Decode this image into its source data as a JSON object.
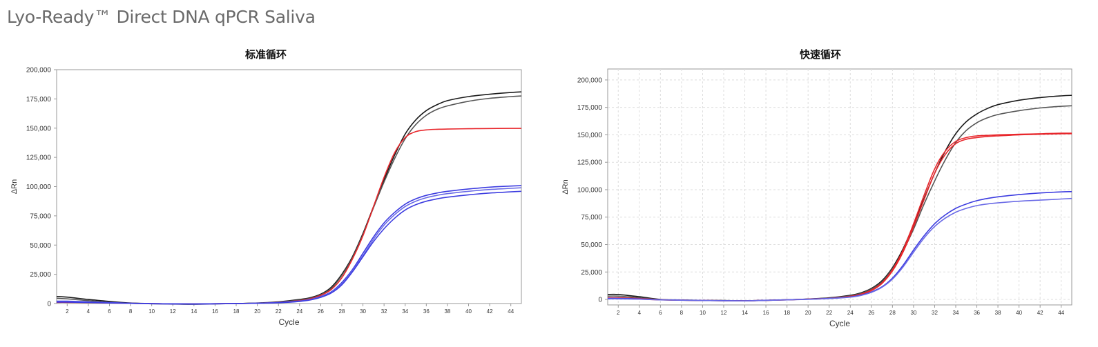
{
  "page": {
    "title": "Lyo-Ready™ Direct DNA qPCR Saliva"
  },
  "colors": {
    "black": "#1a1a1a",
    "gray": "#555555",
    "red": "#e8262b",
    "blue": "#3c3ce0",
    "blue_light": "#6a6ae6",
    "grid": "#dddddd",
    "axis": "#999999"
  },
  "chart_data": [
    {
      "type": "line",
      "title": "标准循环",
      "xlabel": "Cycle",
      "ylabel": "ΔRn",
      "xlim": [
        1,
        45
      ],
      "ylim": [
        0,
        200000
      ],
      "grid": false,
      "x_ticks": [
        2,
        4,
        6,
        8,
        10,
        12,
        14,
        16,
        18,
        20,
        22,
        24,
        26,
        28,
        30,
        32,
        34,
        36,
        38,
        40,
        42,
        44
      ],
      "y_ticks": [
        0,
        25000,
        50000,
        75000,
        100000,
        125000,
        150000,
        175000,
        200000
      ],
      "y_tick_labels": [
        "0",
        "25,000",
        "50,000",
        "75,000",
        "100,000",
        "125,000",
        "150,000",
        "175,000",
        "200,000"
      ],
      "x": [
        1,
        2,
        4,
        6,
        8,
        10,
        12,
        14,
        16,
        18,
        20,
        22,
        24,
        25,
        26,
        27,
        28,
        29,
        30,
        31,
        32,
        33,
        34,
        35,
        36,
        37,
        38,
        40,
        42,
        44,
        45
      ],
      "series": [
        {
          "color": "black",
          "values": [
            6000,
            5500,
            3500,
            1800,
            500,
            0,
            -300,
            -500,
            -200,
            0,
            500,
            1500,
            3500,
            5000,
            8000,
            14000,
            25000,
            40000,
            60000,
            83000,
            106000,
            127000,
            145000,
            157000,
            165000,
            170000,
            173500,
            177000,
            179000,
            180500,
            181000
          ]
        },
        {
          "color": "gray",
          "values": [
            4500,
            4000,
            2500,
            1000,
            200,
            -200,
            -500,
            -600,
            -300,
            0,
            400,
            1200,
            3000,
            4500,
            7500,
            13000,
            24000,
            39000,
            59000,
            82000,
            104000,
            124000,
            141000,
            153000,
            161000,
            166000,
            169000,
            173000,
            175500,
            177000,
            177500
          ]
        },
        {
          "color": "red",
          "values": [
            1000,
            1000,
            800,
            500,
            200,
            0,
            -200,
            -300,
            -100,
            0,
            300,
            1000,
            2500,
            4000,
            7000,
            12000,
            22000,
            38000,
            58000,
            83000,
            108000,
            129000,
            142000,
            147000,
            148500,
            149000,
            149200,
            149500,
            149700,
            149800,
            149800
          ]
        },
        {
          "color": "blue",
          "values": [
            2000,
            2000,
            1500,
            800,
            300,
            0,
            -200,
            -300,
            -100,
            0,
            300,
            900,
            2200,
            3500,
            6000,
            10000,
            18000,
            29000,
            43000,
            57000,
            69000,
            78000,
            85000,
            89500,
            92500,
            94500,
            96000,
            98000,
            99500,
            100500,
            100800
          ]
        },
        {
          "color": "blue_light",
          "values": [
            1500,
            1500,
            1100,
            600,
            200,
            -100,
            -300,
            -400,
            -200,
            0,
            300,
            800,
            2000,
            3300,
            5700,
            9500,
            17000,
            28000,
            41000,
            55000,
            67000,
            76000,
            83000,
            87500,
            90500,
            92500,
            94000,
            96000,
            97500,
            98500,
            99000
          ]
        },
        {
          "color": "blue",
          "values": [
            1200,
            1200,
            900,
            500,
            150,
            -150,
            -350,
            -450,
            -250,
            -50,
            250,
            700,
            1800,
            3000,
            5300,
            9000,
            16000,
            27000,
            40000,
            53000,
            64000,
            73000,
            80000,
            84500,
            87500,
            89500,
            91000,
            93000,
            94500,
            95500,
            96000
          ]
        }
      ]
    },
    {
      "type": "line",
      "title": "快速循环",
      "xlabel": "Cycle",
      "ylabel": "ΔRn",
      "xlim": [
        1,
        45
      ],
      "ylim": [
        -5000,
        210000
      ],
      "grid": true,
      "x_ticks": [
        2,
        4,
        6,
        8,
        10,
        12,
        14,
        16,
        18,
        20,
        22,
        24,
        26,
        28,
        30,
        32,
        34,
        36,
        38,
        40,
        42,
        44
      ],
      "y_ticks": [
        0,
        25000,
        50000,
        75000,
        100000,
        125000,
        150000,
        175000,
        200000
      ],
      "y_tick_labels": [
        "0",
        "25,000",
        "50,000",
        "75,000",
        "100,000",
        "125,000",
        "150,000",
        "175,000",
        "200,000"
      ],
      "x": [
        1,
        2,
        4,
        6,
        8,
        10,
        12,
        14,
        16,
        18,
        20,
        22,
        24,
        25,
        26,
        27,
        28,
        29,
        30,
        31,
        32,
        33,
        34,
        35,
        36,
        37,
        38,
        40,
        42,
        44,
        45
      ],
      "series": [
        {
          "color": "black",
          "values": [
            4500,
            4500,
            2500,
            0,
            -500,
            -800,
            -1000,
            -1200,
            -800,
            -300,
            400,
            1500,
            3800,
            6000,
            10000,
            17000,
            29000,
            46000,
            68000,
            92000,
            115000,
            135000,
            151000,
            162000,
            169000,
            174000,
            177500,
            181500,
            184000,
            185500,
            186000
          ]
        },
        {
          "color": "gray",
          "values": [
            3000,
            3000,
            1500,
            -300,
            -700,
            -1000,
            -1200,
            -1300,
            -900,
            -400,
            300,
            1200,
            3300,
            5500,
            9500,
            16000,
            28000,
            44000,
            64000,
            87000,
            108000,
            127000,
            143000,
            154000,
            161000,
            165500,
            168500,
            172000,
            174500,
            176000,
            176500
          ]
        },
        {
          "color": "red",
          "values": [
            1500,
            1500,
            800,
            -200,
            -600,
            -900,
            -1100,
            -1200,
            -800,
            -300,
            300,
            1000,
            2800,
            4800,
            8500,
            15000,
            27000,
            45000,
            69000,
            95000,
            119000,
            135000,
            144000,
            147500,
            149000,
            149500,
            150000,
            150500,
            151000,
            151500,
            151500
          ]
        },
        {
          "color": "red",
          "values": [
            800,
            800,
            300,
            -400,
            -700,
            -1000,
            -1200,
            -1300,
            -900,
            -400,
            200,
            900,
            2600,
            4500,
            8000,
            14500,
            26000,
            43000,
            66000,
            91000,
            115000,
            132000,
            142000,
            146000,
            147500,
            148500,
            149000,
            150000,
            150500,
            151000,
            151000
          ]
        },
        {
          "color": "blue",
          "values": [
            1000,
            1000,
            500,
            -300,
            -600,
            -900,
            -1100,
            -1200,
            -800,
            -300,
            200,
            900,
            2300,
            3900,
            6800,
            11500,
            19500,
            31000,
            45000,
            58000,
            69000,
            77000,
            83000,
            87000,
            90000,
            92000,
            93500,
            95500,
            97000,
            98000,
            98200
          ]
        },
        {
          "color": "blue_light",
          "values": [
            500,
            500,
            200,
            -400,
            -700,
            -1000,
            -1200,
            -1300,
            -900,
            -400,
            100,
            800,
            2100,
            3600,
            6400,
            11000,
            18500,
            29500,
            43000,
            56000,
            66500,
            74000,
            79500,
            83000,
            85500,
            87000,
            88000,
            89500,
            90500,
            91500,
            92000
          ]
        }
      ]
    }
  ]
}
